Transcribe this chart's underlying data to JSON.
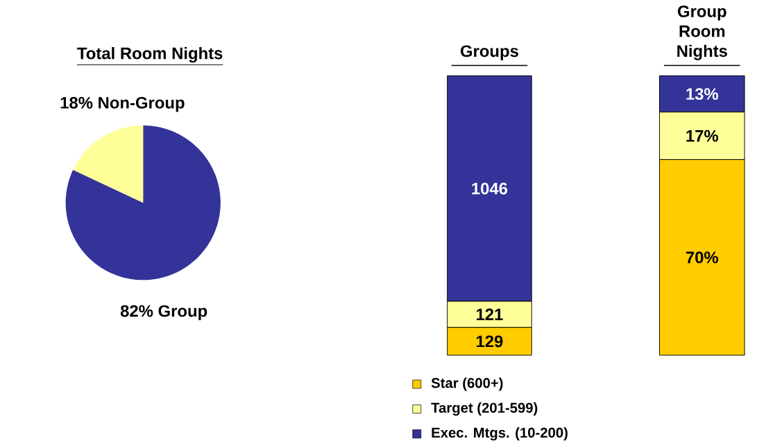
{
  "chart_data": [
    {
      "type": "pie",
      "title": "Total Room Nights",
      "categories": [
        "Group",
        "Non-Group"
      ],
      "values": [
        82,
        18
      ],
      "colors": [
        "#333399",
        "#ffff99"
      ],
      "value_labels": [
        "82%",
        "18%"
      ]
    },
    {
      "type": "bar",
      "title": "Groups",
      "categories": [
        null
      ],
      "stacked": true,
      "data_labels": true,
      "legend": "bottom",
      "series": [
        {
          "name": "Star (600+)",
          "color": "#ffcc00",
          "values": [
            129
          ]
        },
        {
          "name": "Target (201-599)",
          "color": "#ffff99",
          "values": [
            121
          ]
        },
        {
          "name": "Exec. Mtgs. (10-200)",
          "color": "#333399",
          "values": [
            1046
          ]
        }
      ]
    },
    {
      "type": "bar",
      "title": "Group Room Nights",
      "categories": [
        null
      ],
      "stacked": true,
      "series": [
        {
          "color": "#ffcc00",
          "values": [
            70
          ],
          "value_labels": [
            "70%"
          ]
        },
        {
          "color": "#ffff99",
          "values": [
            17
          ],
          "value_labels": [
            "17%"
          ]
        },
        {
          "color": "#333399",
          "values": [
            13
          ],
          "value_labels": [
            "13%"
          ]
        }
      ]
    }
  ]
}
